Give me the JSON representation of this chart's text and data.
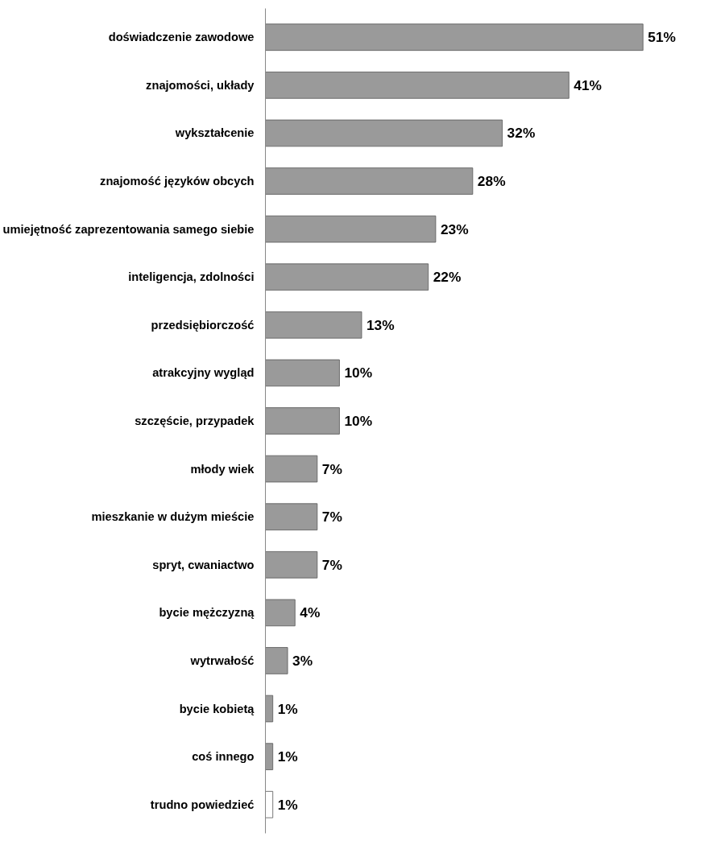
{
  "chart_data": {
    "type": "bar",
    "orientation": "horizontal",
    "categories": [
      "doświadczenie zawodowe",
      "znajomości, układy",
      "wykształcenie",
      "znajomość języków obcych",
      "umiejętność zaprezentowania samego siebie",
      "inteligencja, zdolności",
      "przedsiębiorczość",
      "atrakcyjny wygląd",
      "szczęście, przypadek",
      "młody wiek",
      "mieszkanie w dużym mieście",
      "spryt, cwaniactwo",
      "bycie mężczyzną",
      "wytrwałość",
      "bycie kobietą",
      "coś innego",
      "trudno powiedzieć"
    ],
    "values": [
      51,
      41,
      32,
      28,
      23,
      22,
      13,
      10,
      10,
      7,
      7,
      7,
      4,
      3,
      1,
      1,
      1
    ],
    "value_labels": [
      "51%",
      "41%",
      "32%",
      "28%",
      "23%",
      "22%",
      "13%",
      "10%",
      "10%",
      "7%",
      "7%",
      "7%",
      "4%",
      "3%",
      "1%",
      "1%",
      "1%"
    ],
    "colors": [
      "#9a9a9a",
      "#9a9a9a",
      "#9a9a9a",
      "#9a9a9a",
      "#9a9a9a",
      "#9a9a9a",
      "#9a9a9a",
      "#9a9a9a",
      "#9a9a9a",
      "#9a9a9a",
      "#9a9a9a",
      "#9a9a9a",
      "#9a9a9a",
      "#9a9a9a",
      "#9a9a9a",
      "#9a9a9a",
      "#ffffff"
    ],
    "grid": false
  }
}
